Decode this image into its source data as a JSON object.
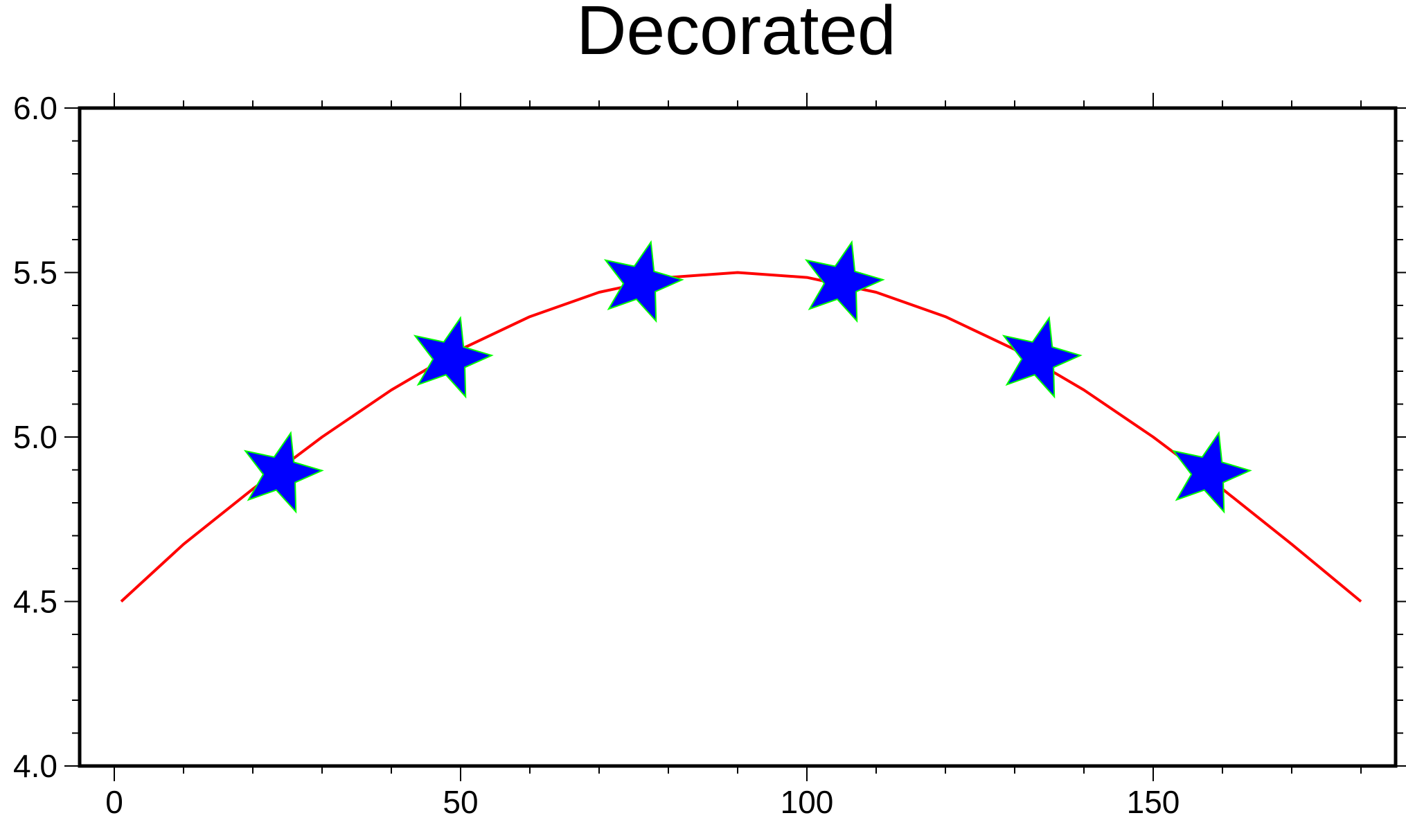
{
  "chart_data": {
    "type": "line",
    "title": "Decorated",
    "xlabel": "",
    "ylabel": "",
    "xlim": [
      -5,
      185
    ],
    "ylim": [
      4.0,
      6.0
    ],
    "x_ticks": [
      0,
      50,
      100,
      150
    ],
    "x_tick_labels": [
      "0",
      "50",
      "100",
      "150"
    ],
    "y_ticks": [
      4.0,
      4.5,
      5.0,
      5.5,
      6.0
    ],
    "y_tick_labels": [
      "4.0",
      "4.5",
      "5.0",
      "5.5",
      "6.0"
    ],
    "grid": false,
    "series": [
      {
        "kind": "line",
        "x": [
          1,
          10,
          20,
          30,
          40,
          50,
          60,
          70,
          80,
          90,
          100,
          110,
          120,
          130,
          140,
          150,
          160,
          170,
          180
        ],
        "y": [
          4.5,
          4.674,
          4.842,
          5.0,
          5.143,
          5.266,
          5.366,
          5.44,
          5.485,
          5.5,
          5.485,
          5.44,
          5.366,
          5.266,
          5.143,
          5.0,
          4.842,
          4.674,
          4.5
        ],
        "color": "#ff0000"
      },
      {
        "kind": "markers",
        "marker": "star",
        "x": [
          24,
          48.5,
          76,
          105,
          133.5,
          158
        ],
        "y": [
          4.89,
          5.24,
          5.47,
          5.47,
          5.24,
          4.89
        ],
        "fill": "#0000ff",
        "stroke": "#00ff00"
      }
    ]
  }
}
